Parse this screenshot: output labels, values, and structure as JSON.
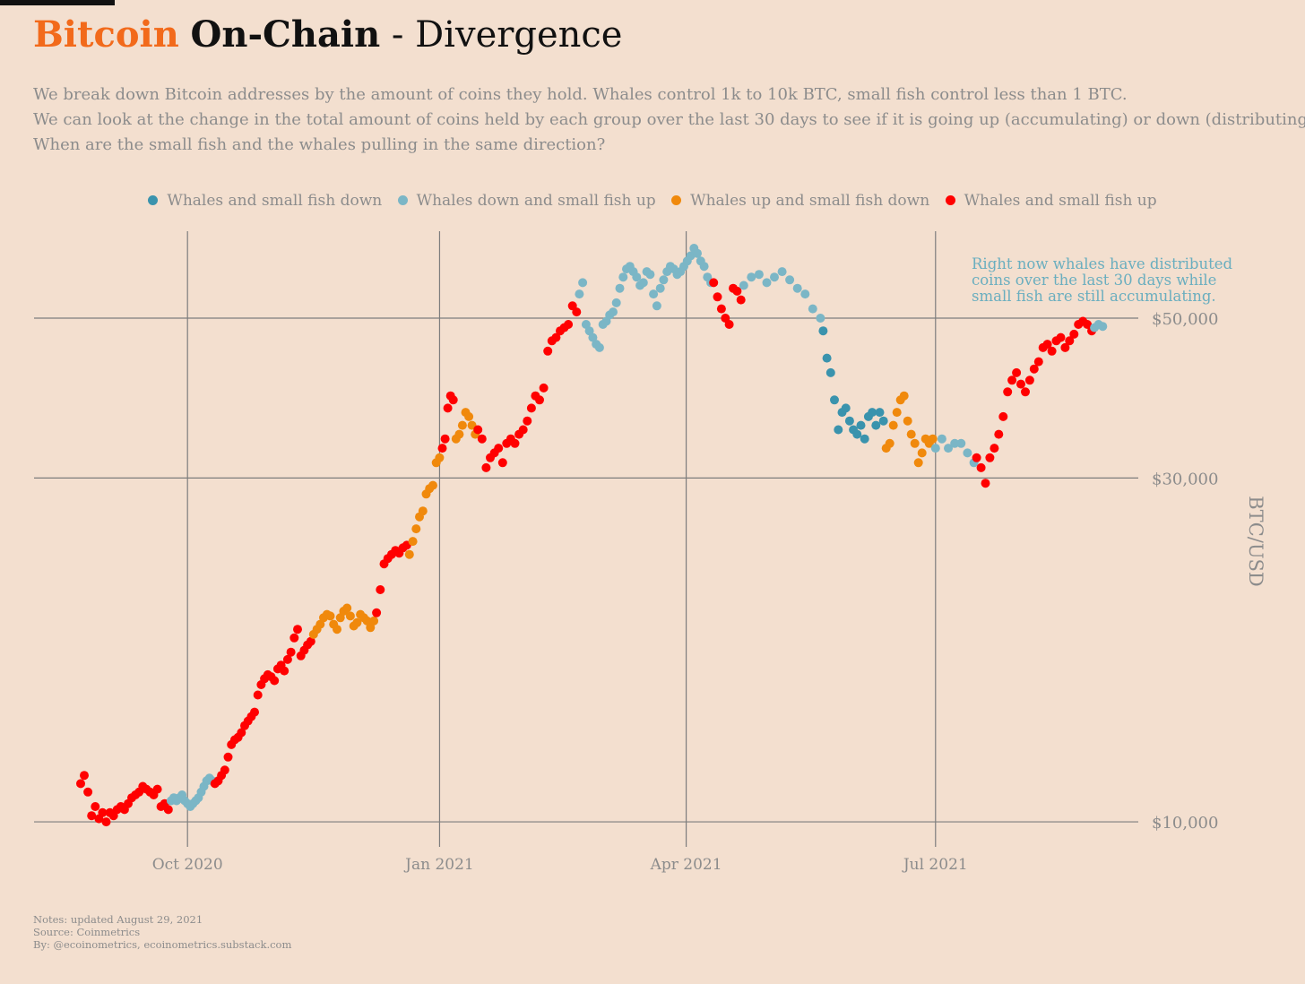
{
  "header": {
    "title_part1": "Bitcoin",
    "title_part2": "On-Chain",
    "title_part3": "- Divergence",
    "subtitle_lines": [
      "We break down Bitcoin addresses by the amount of coins they hold. Whales control 1k to 10k BTC, small fish control less than 1 BTC.",
      "We can look at the change in the total amount of coins held by each group over the last 30 days to see if it is going up (accumulating) or down (distributing).",
      "When are the small fish and the whales pulling in the same direction?"
    ]
  },
  "notes": {
    "line1": "Notes: updated August 29, 2021",
    "line2": "Source: Coinmetrics",
    "line3": "By: @ecoinometrics, ecoinometrics.substack.com"
  },
  "chart_data": {
    "type": "scatter",
    "title": "Bitcoin On-Chain - Divergence",
    "ylabel": "BTC/USD",
    "xlabel": "",
    "y_scale": "log",
    "ylim": [
      9500,
      66000
    ],
    "xlim": [
      "2020-08-06",
      "2021-09-13"
    ],
    "grid": true,
    "legend_position": "top",
    "x_ticks": [
      {
        "date": "2020-10-01",
        "label": "Oct 2020"
      },
      {
        "date": "2021-01-01",
        "label": "Jan 2021"
      },
      {
        "date": "2021-04-01",
        "label": "Apr 2021"
      },
      {
        "date": "2021-07-01",
        "label": "Jul 2021"
      }
    ],
    "y_ticks": [
      {
        "value": 10000,
        "label": "$10,000"
      },
      {
        "value": 30000,
        "label": "$30,000"
      },
      {
        "value": 50000,
        "label": "$50,000"
      }
    ],
    "annotation": {
      "lines": [
        "Right now whales have distributed",
        "coins over the last 30 days while",
        "small fish are still accumulating."
      ],
      "color": "#6aaebf"
    },
    "series": [
      {
        "name": "Whales and small fish down",
        "color": "#3a93ad"
      },
      {
        "name": "Whales down and small fish up",
        "color": "#7bb6c6"
      },
      {
        "name": "Whales up and small fish down",
        "color": "#f0890c"
      },
      {
        "name": "Whales and small fish up",
        "color": "#ff0000"
      }
    ],
    "segments": [
      {
        "start": "2020-08-23",
        "end": "2020-09-24",
        "state": 3,
        "values": [
          11300,
          11600,
          11000,
          10200,
          10500,
          10100,
          10300,
          10000,
          10300,
          10200,
          10400,
          10500,
          10400,
          10600,
          10800,
          10900,
          11000,
          11200,
          11100,
          11000,
          10900,
          11100,
          10500,
          10600,
          10400
        ]
      },
      {
        "start": "2020-09-25",
        "end": "2020-10-10",
        "state": 1,
        "values": [
          10700,
          10800,
          10700,
          10800,
          10900,
          10700,
          10600,
          10500,
          10600,
          10700,
          10800,
          11000,
          11200,
          11400,
          11500,
          11400
        ]
      },
      {
        "start": "2020-10-11",
        "end": "2020-11-15",
        "state": 3,
        "values": [
          11300,
          11400,
          11600,
          11800,
          12300,
          12800,
          13000,
          13100,
          13300,
          13600,
          13800,
          14000,
          14200,
          15000,
          15500,
          15800,
          16000,
          15900,
          15700,
          16300,
          16500,
          16200,
          16800,
          17200,
          18000,
          18500,
          17000,
          17300,
          17600,
          17800
        ]
      },
      {
        "start": "2020-11-16",
        "end": "2020-12-08",
        "state": 2,
        "values": [
          18200,
          18500,
          18800,
          19200,
          19400,
          19300,
          18800,
          18500,
          19200,
          19600,
          19800,
          19300,
          18700,
          18900,
          19400,
          19200,
          19000,
          18600,
          19000
        ]
      },
      {
        "start": "2020-12-09",
        "end": "2020-12-20",
        "state": 3,
        "values": [
          19500,
          21000,
          22800,
          23200,
          23500,
          23800,
          23600,
          24000,
          24200
        ]
      },
      {
        "start": "2020-12-21",
        "end": "2021-01-01",
        "state": 2,
        "values": [
          23500,
          24500,
          25500,
          26500,
          27000,
          28500,
          29000,
          29300,
          31500,
          32000
        ]
      },
      {
        "start": "2021-01-02",
        "end": "2021-01-06",
        "state": 3,
        "values": [
          33000,
          34000,
          37500,
          39000,
          38500
        ]
      },
      {
        "start": "2021-01-07",
        "end": "2021-01-14",
        "state": 2,
        "values": [
          34000,
          34500,
          35500,
          37000,
          36500,
          35500,
          34500
        ]
      },
      {
        "start": "2021-01-15",
        "end": "2021-02-20",
        "state": 3,
        "values": [
          35000,
          34000,
          31000,
          32000,
          32500,
          33000,
          31500,
          33500,
          34000,
          33500,
          34500,
          35000,
          36000,
          37500,
          39000,
          38500,
          40000,
          45000,
          46500,
          47000,
          48000,
          48500,
          49000,
          52000,
          51000
        ]
      },
      {
        "start": "2021-02-21",
        "end": "2021-04-10",
        "state": 1,
        "values": [
          54000,
          56000,
          49000,
          48000,
          47000,
          46000,
          45500,
          49000,
          49500,
          50500,
          51000,
          52500,
          55000,
          57000,
          58500,
          59000,
          58000,
          57000,
          55500,
          56000,
          58000,
          57500,
          54000,
          52000,
          55000,
          56500,
          58000,
          59000,
          58500,
          57500,
          58000,
          59000,
          60000,
          61000,
          62500,
          61500,
          60000,
          59000,
          57000,
          56000
        ]
      },
      {
        "start": "2021-04-11",
        "end": "2021-04-21",
        "state": 3,
        "values": [
          56000,
          53500,
          51500,
          50000,
          49000,
          55000,
          54500,
          53000
        ]
      },
      {
        "start": "2021-04-22",
        "end": "2021-05-20",
        "state": 1,
        "values": [
          55500,
          57000,
          57500,
          56000,
          57000,
          58000,
          56500,
          55000,
          54000,
          51500,
          50000
        ]
      },
      {
        "start": "2021-05-21",
        "end": "2021-06-12",
        "state": 0,
        "values": [
          48000,
          44000,
          42000,
          38500,
          35000,
          37000,
          37500,
          36000,
          35000,
          34500,
          35500,
          34000,
          36500,
          37000,
          35500,
          37000,
          36000
        ]
      },
      {
        "start": "2021-06-13",
        "end": "2021-06-30",
        "state": 2,
        "values": [
          33000,
          33500,
          35500,
          37000,
          38500,
          39000,
          36000,
          34500,
          33500,
          31500,
          32500,
          34000,
          33500,
          34000
        ]
      },
      {
        "start": "2021-07-01",
        "end": "2021-07-15",
        "state": 1,
        "values": [
          33000,
          34000,
          33000,
          33500,
          33500,
          32500,
          31500
        ]
      },
      {
        "start": "2021-07-16",
        "end": "2021-08-27",
        "state": 3,
        "values": [
          32000,
          31000,
          29500,
          32000,
          33000,
          34500,
          36500,
          39500,
          41000,
          42000,
          40500,
          39500,
          41000,
          42500,
          43500,
          45500,
          46000,
          45000,
          46500,
          47000,
          45500,
          46500,
          47500,
          49000,
          49500,
          49000,
          48000
        ]
      },
      {
        "start": "2021-08-28",
        "end": "2021-08-31",
        "state": 1,
        "values": [
          48500,
          49000,
          48700
        ]
      }
    ]
  }
}
